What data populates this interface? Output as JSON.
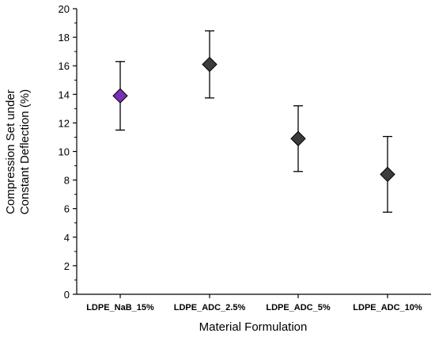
{
  "chart_data": {
    "type": "scatter",
    "xlabel": "Material Formulation",
    "ylabel_lines": [
      "Compression Set under",
      "Constant Deflection (%)"
    ],
    "categories": [
      "LDPE_NaB_15%",
      "LDPE_ADC_2.5%",
      "LDPE_ADC_5%",
      "LDPE_ADC_10%"
    ],
    "values": [
      13.9,
      16.1,
      10.9,
      8.4
    ],
    "error_upper": [
      16.3,
      18.45,
      13.2,
      11.05
    ],
    "error_lower": [
      11.5,
      13.75,
      8.6,
      5.75
    ],
    "marker_colors": [
      "#7a2fb5",
      "#3c3c3c",
      "#3c3c3c",
      "#3c3c3c"
    ],
    "marker": "diamond",
    "ylim": [
      0,
      20
    ],
    "yticks": [
      "0",
      "2",
      "4",
      "6",
      "8",
      "10",
      "12",
      "14",
      "16",
      "18",
      "20"
    ],
    "grid": false,
    "legend": "none"
  }
}
